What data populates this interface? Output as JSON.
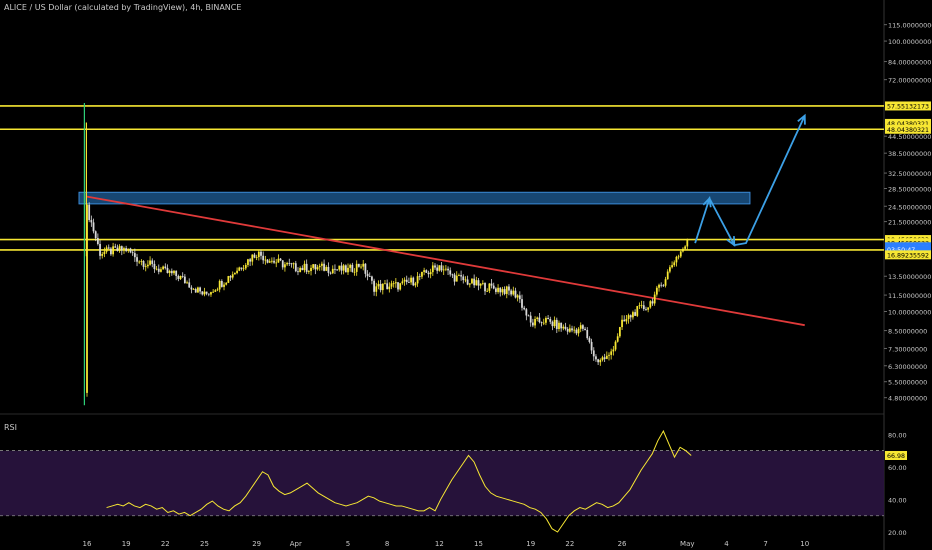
{
  "header": {
    "title": "ALICE / US Dollar (calculated by TradingView), 4h, BINANCE"
  },
  "rsi_panel": {
    "label": "RSI",
    "value_tag": "66.98"
  },
  "chart_data": [
    {
      "type": "candlestick",
      "title": "ALICE / US Dollar (calculated by TradingView), 4h, BINANCE",
      "scale": "log",
      "ylim": [
        4.5,
        120
      ],
      "y_ticks": [
        "115.00000000",
        "100.00000000",
        "84.00000000",
        "72.00000000",
        "44.50000000",
        "38.50000000",
        "32.50000000",
        "28.50000000",
        "24.50000000",
        "21.50000000",
        "13.50000000",
        "11.50000000",
        "10.00000000",
        "8.50000000",
        "7.30000000",
        "6.30000000",
        "5.50000000",
        "4.80000000"
      ],
      "x_ticks": [
        "16",
        "19",
        "22",
        "25",
        "29",
        "Apr",
        "5",
        "8",
        "12",
        "15",
        "19",
        "22",
        "26",
        "May",
        "4",
        "7",
        "10"
      ],
      "price_tags": [
        {
          "label": "57.55132173",
          "value": 57.55,
          "color": "#f7e733"
        },
        {
          "label": "48.04380321",
          "value": 49.6,
          "color": "#f7e733"
        },
        {
          "label": "48.04380321",
          "value": 47.2,
          "color": "#f7e733"
        },
        {
          "label": "18.45650633",
          "value": 18.45,
          "color": "#f7e733"
        },
        {
          "label": "18.45650633",
          "value": 17.95,
          "color": "#f7e733"
        },
        {
          "label": "17.66209770",
          "value": 17.35,
          "color": "#2b7fff"
        },
        {
          "label": "03:50:47",
          "value": 16.95,
          "color": "#2b7fff"
        },
        {
          "label": "16.89235592",
          "value": 16.2,
          "color": "#f7e733"
        }
      ],
      "horizontal_levels": [
        57.55,
        47.2,
        18.45,
        16.89
      ],
      "resistance_zone": [
        25.0,
        27.6
      ],
      "trendline": {
        "from_date": "Mar 16",
        "from_value": 26.6,
        "to_date": "May 10",
        "to_value": 8.9,
        "color": "#e03a3a"
      },
      "projection_path": [
        {
          "date": "May 1.6",
          "value": 17.9
        },
        {
          "date": "May 2.7",
          "value": 26.2
        },
        {
          "date": "May 4.6",
          "value": 17.6
        },
        {
          "date": "May 5.5",
          "value": 17.9
        },
        {
          "date": "May 10",
          "value": 53.0
        }
      ],
      "price_path": [
        {
          "date": "Mar 15.8",
          "value": 5.0
        },
        {
          "date": "Mar 16",
          "value": 24.0
        },
        {
          "date": "Mar 16.5",
          "value": 20.0
        },
        {
          "date": "Mar 17",
          "value": 16.5
        },
        {
          "date": "Mar 19",
          "value": 17.0
        },
        {
          "date": "Mar 20",
          "value": 15.5
        },
        {
          "date": "Mar 22",
          "value": 14.0
        },
        {
          "date": "Mar 23",
          "value": 13.5
        },
        {
          "date": "Mar 25",
          "value": 11.5
        },
        {
          "date": "Mar 26.5",
          "value": 13.0
        },
        {
          "date": "Mar 28",
          "value": 15.0
        },
        {
          "date": "Mar 29",
          "value": 16.5
        },
        {
          "date": "Mar 30",
          "value": 15.5
        },
        {
          "date": "Apr 1",
          "value": 14.5
        },
        {
          "date": "Apr 3",
          "value": 14.5
        },
        {
          "date": "Apr 5",
          "value": 14.2
        },
        {
          "date": "Apr 6",
          "value": 15.0
        },
        {
          "date": "Apr 7",
          "value": 12.3
        },
        {
          "date": "Apr 9",
          "value": 12.5
        },
        {
          "date": "Apr 10",
          "value": 13.0
        },
        {
          "date": "Apr 12",
          "value": 14.8
        },
        {
          "date": "Apr 13",
          "value": 13.5
        },
        {
          "date": "Apr 15",
          "value": 12.5
        },
        {
          "date": "Apr 17",
          "value": 12.0
        },
        {
          "date": "Apr 18",
          "value": 11.5
        },
        {
          "date": "Apr 19",
          "value": 9.0
        },
        {
          "date": "Apr 20",
          "value": 9.3
        },
        {
          "date": "Apr 22",
          "value": 8.5
        },
        {
          "date": "Apr 23",
          "value": 8.7
        },
        {
          "date": "Apr 24",
          "value": 6.6
        },
        {
          "date": "Apr 25",
          "value": 6.8
        },
        {
          "date": "Apr 26",
          "value": 9.0
        },
        {
          "date": "Apr 27",
          "value": 10.0
        },
        {
          "date": "Apr 28",
          "value": 10.5
        },
        {
          "date": "Apr 29",
          "value": 12.5
        },
        {
          "date": "Apr 30",
          "value": 15.5
        },
        {
          "date": "May 1",
          "value": 17.9
        }
      ],
      "colors": {
        "up": "#f7e733",
        "down": "#d9d9d9",
        "levels": "#f7e733",
        "zone": "#1f5f99",
        "projection": "#3ca0e6",
        "last_price": "#2b7fff"
      }
    },
    {
      "type": "line",
      "title": "RSI",
      "ylim": [
        20,
        90
      ],
      "y_ticks": [
        "80.00",
        "60.00",
        "40.00",
        "20.00"
      ],
      "bands": [
        70,
        30
      ],
      "last_value": 66.98,
      "series": [
        {
          "values": [
            35,
            36,
            37,
            36,
            38,
            36,
            35,
            37,
            36,
            34,
            35,
            32,
            33,
            31,
            32,
            30,
            32,
            34,
            37,
            39,
            36,
            34,
            33,
            36,
            38,
            42,
            47,
            52,
            57,
            55,
            48,
            45,
            43,
            44,
            46,
            48,
            50,
            47,
            44,
            42,
            40,
            38,
            37,
            36,
            37,
            38,
            40,
            42,
            41,
            39,
            38,
            37,
            36,
            36,
            35,
            34,
            33,
            33,
            35,
            33,
            40,
            46,
            52,
            57,
            62,
            67,
            63,
            55,
            48,
            44,
            42,
            41,
            40,
            39,
            38,
            37,
            35,
            34,
            32,
            28,
            22,
            20,
            25,
            30,
            33,
            35,
            34,
            36,
            38,
            37,
            35,
            36,
            38,
            42,
            46,
            52,
            58,
            63,
            68,
            76,
            82,
            74,
            66,
            72,
            70,
            67
          ],
          "color": "#f7e733"
        }
      ]
    }
  ]
}
